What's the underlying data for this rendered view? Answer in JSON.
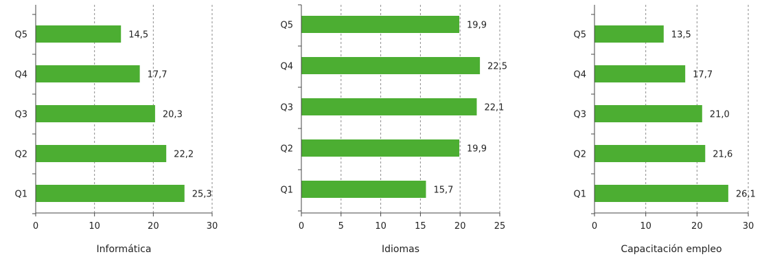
{
  "chart_data": [
    {
      "type": "bar",
      "orientation": "horizontal",
      "categories": [
        "Q1",
        "Q2",
        "Q3",
        "Q4",
        "Q5"
      ],
      "values": [
        25.3,
        22.2,
        20.3,
        17.7,
        14.5
      ],
      "value_labels": [
        "25,3",
        "22,2",
        "20,3",
        "17,7",
        "14,5"
      ],
      "xlabel": "Informática",
      "xlim": [
        0,
        30
      ],
      "xticks": [
        0,
        10,
        20,
        30
      ],
      "grid": true,
      "color": "#4cae32"
    },
    {
      "type": "bar",
      "orientation": "horizontal",
      "categories": [
        "Q1",
        "Q2",
        "Q3",
        "Q4",
        "Q5"
      ],
      "values": [
        15.7,
        19.9,
        22.1,
        22.5,
        19.9
      ],
      "value_labels": [
        "15,7",
        "19,9",
        "22,1",
        "22,5",
        "19,9"
      ],
      "xlabel": "Idiomas",
      "xlim": [
        0,
        25
      ],
      "xticks": [
        0,
        5,
        10,
        15,
        20,
        25
      ],
      "grid": true,
      "color": "#4cae32"
    },
    {
      "type": "bar",
      "orientation": "horizontal",
      "categories": [
        "Q1",
        "Q2",
        "Q3",
        "Q4",
        "Q5"
      ],
      "values": [
        26.1,
        21.6,
        21.0,
        17.7,
        13.5
      ],
      "value_labels": [
        "26,1",
        "21,6",
        "21,0",
        "17,7",
        "13,5"
      ],
      "xlabel": "Capacitación empleo",
      "xlim": [
        0,
        30
      ],
      "xticks": [
        0,
        10,
        20,
        30
      ],
      "grid": true,
      "color": "#4cae32"
    }
  ]
}
